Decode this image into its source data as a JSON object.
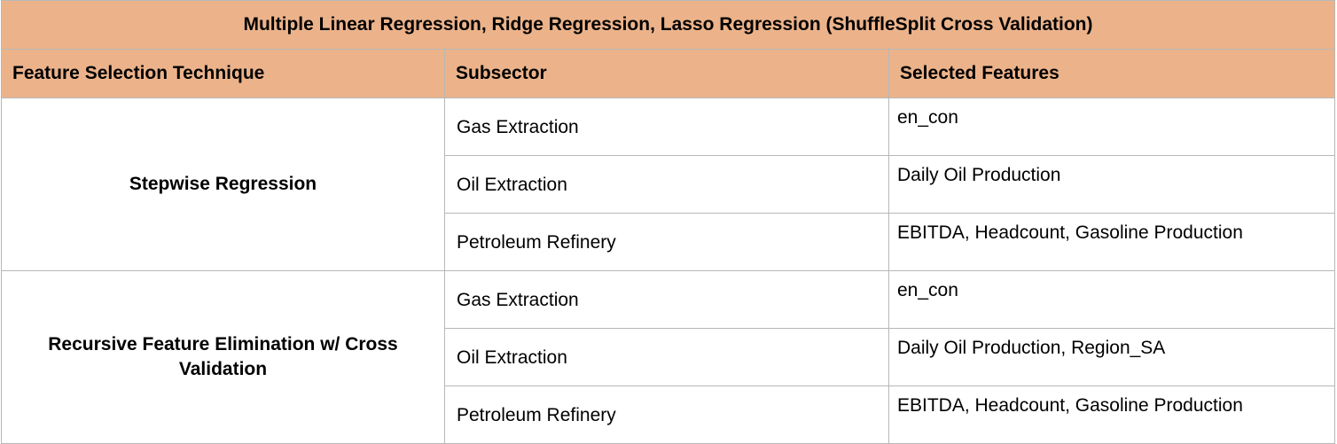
{
  "table": {
    "title": "Multiple Linear Regression, Ridge Regression, Lasso Regression (ShuffleSplit Cross Validation)",
    "headers": [
      "Feature Selection Technique",
      "Subsector",
      "Selected Features"
    ],
    "groups": [
      {
        "technique": "Stepwise Regression",
        "rows": [
          {
            "subsector": "Gas Extraction",
            "features": "en_con"
          },
          {
            "subsector": "Oil Extraction",
            "features": "Daily Oil Production"
          },
          {
            "subsector": "Petroleum Refinery",
            "features": "EBITDA, Headcount, Gasoline Production"
          }
        ]
      },
      {
        "technique": "Recursive Feature Elimination w/ Cross Validation",
        "rows": [
          {
            "subsector": "Gas Extraction",
            "features": "en_con"
          },
          {
            "subsector": "Oil Extraction",
            "features": "Daily Oil Production, Region_SA"
          },
          {
            "subsector": "Petroleum Refinery",
            "features": "EBITDA, Headcount, Gasoline Production"
          }
        ]
      }
    ]
  },
  "colors": {
    "header_bg": "#ecb38b",
    "border": "#b7b7b7"
  }
}
